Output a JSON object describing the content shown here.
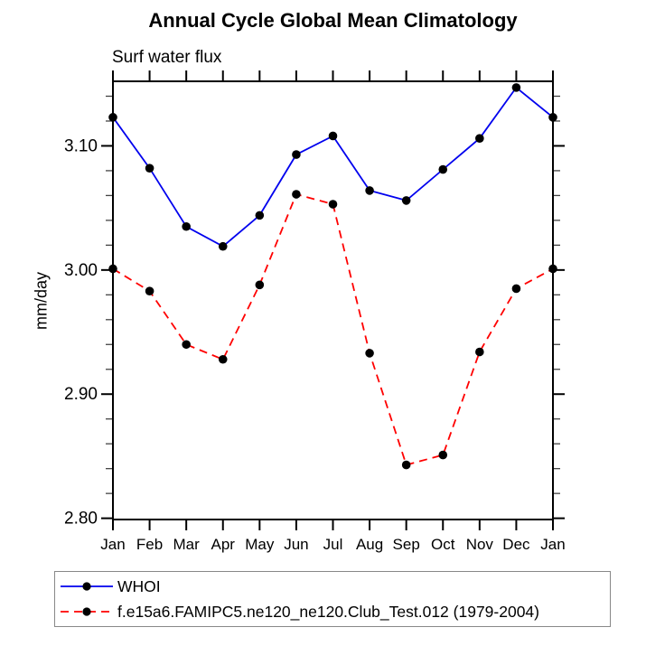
{
  "title": "Annual Cycle Global Mean Climatology",
  "subtitle": "Surf water flux",
  "ylabel": "mm/day",
  "colors": {
    "series1": "#0000ee",
    "series2": "#ff0000",
    "marker": "#000000",
    "axis": "#000000",
    "minor_tick": "#444444",
    "legend_border": "#888888"
  },
  "chart_data": {
    "type": "line",
    "title": "Annual Cycle Global Mean Climatology",
    "subtitle": "Surf water flux",
    "ylabel": "mm/day",
    "xlabel": "",
    "categories": [
      "Jan",
      "Feb",
      "Mar",
      "Apr",
      "May",
      "Jun",
      "Jul",
      "Aug",
      "Sep",
      "Oct",
      "Nov",
      "Dec",
      "Jan"
    ],
    "series": [
      {
        "name": "WHOI",
        "color": "#0000ee",
        "line_style": "solid",
        "marker": "filled-black-circle",
        "values": [
          3.123,
          3.082,
          3.035,
          3.019,
          3.044,
          3.093,
          3.108,
          3.064,
          3.056,
          3.081,
          3.106,
          3.147,
          3.123
        ]
      },
      {
        "name": "f.e15a6.FAMIPC5.ne120_ne120.Club_Test.012 (1979-2004)",
        "color": "#ff0000",
        "line_style": "dashed",
        "marker": "filled-black-circle",
        "values": [
          3.001,
          2.983,
          2.94,
          2.928,
          2.988,
          3.061,
          3.053,
          2.933,
          2.843,
          2.851,
          2.934,
          2.985,
          3.001
        ]
      }
    ],
    "ylim": [
      2.799,
      3.152
    ],
    "yticks_major": [
      2.8,
      2.9,
      3.0,
      3.1
    ],
    "ytick_labels": [
      "2.80",
      "2.90",
      "3.00",
      "3.10"
    ],
    "ytick_minor_step": 0.02,
    "grid": false,
    "legend_position": "bottom"
  }
}
